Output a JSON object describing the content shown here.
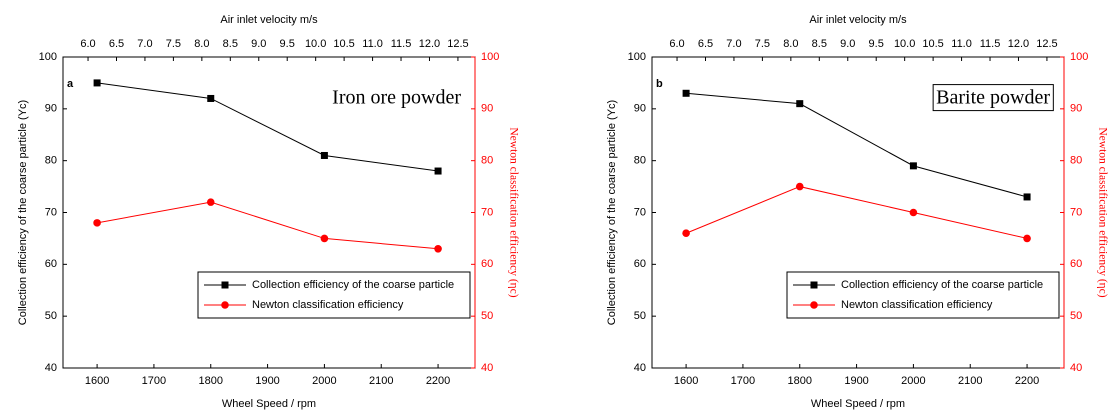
{
  "chart_data": [
    {
      "type": "line",
      "panel_label": "a",
      "annotation": "Iron ore powder",
      "annotation_boxed": false,
      "xlabel": "Wheel Speed / rpm",
      "x2label": "Air inlet velocity  m/s",
      "ylabel": "Collection efficiency of the coarse particle (Yc)",
      "y2label": "Newton classification efficiency (ηc)",
      "x": [
        1600,
        1800,
        2000,
        2200
      ],
      "xlim": [
        1540,
        2265
      ],
      "xticks": [
        1600,
        1700,
        1800,
        1900,
        2000,
        2100,
        2200
      ],
      "x2lim": [
        5.56,
        12.8
      ],
      "x2ticks": [
        {
          "value": 6,
          "label": "6.0"
        },
        6.5,
        {
          "value": 7,
          "label": "7.0"
        },
        7.5,
        {
          "value": 8,
          "label": "8.0"
        },
        8.5,
        {
          "value": 9,
          "label": "9.0"
        },
        9.5,
        {
          "value": 10,
          "label": "10.0"
        },
        10.5,
        {
          "value": 11,
          "label": "11.0"
        },
        11.5,
        {
          "value": 12,
          "label": "12.0"
        },
        12.5
      ],
      "ylim": [
        40,
        100
      ],
      "yticks": [
        40,
        50,
        60,
        70,
        80,
        90,
        100
      ],
      "y2lim": [
        40,
        100
      ],
      "y2ticks": [
        40,
        50,
        60,
        70,
        80,
        90,
        100
      ],
      "y2color": "#ff0000",
      "series": [
        {
          "name": "Collection efficiency of the coarse particle",
          "color": "#000000",
          "marker": "square",
          "values": [
            95,
            92,
            81,
            78
          ]
        },
        {
          "name": "Newton classification efficiency",
          "color": "#ff0000",
          "marker": "circle",
          "axis": "y2",
          "values": [
            68,
            72,
            65,
            63
          ]
        }
      ]
    },
    {
      "type": "line",
      "panel_label": "b",
      "annotation": "Barite powder",
      "annotation_boxed": true,
      "xlabel": "Wheel Speed / rpm",
      "x2label": "Air inlet velocity  m/s",
      "ylabel": "Collection efficiency of the coarse particle (Yc)",
      "y2label": "Newton classification efficiency (ηc)",
      "x": [
        1600,
        1800,
        2000,
        2200
      ],
      "xlim": [
        1540,
        2265
      ],
      "xticks": [
        1600,
        1700,
        1800,
        1900,
        2000,
        2100,
        2200
      ],
      "x2lim": [
        5.56,
        12.8
      ],
      "x2ticks": [
        {
          "value": 6,
          "label": "6.0"
        },
        6.5,
        {
          "value": 7,
          "label": "7.0"
        },
        7.5,
        {
          "value": 8,
          "label": "8.0"
        },
        8.5,
        {
          "value": 9,
          "label": "9.0"
        },
        9.5,
        {
          "value": 10,
          "label": "10.0"
        },
        10.5,
        {
          "value": 11,
          "label": "11.0"
        },
        11.5,
        {
          "value": 12,
          "label": "12.0"
        },
        12.5
      ],
      "ylim": [
        40,
        100
      ],
      "yticks": [
        40,
        50,
        60,
        70,
        80,
        90,
        100
      ],
      "y2lim": [
        40,
        100
      ],
      "y2ticks": [
        40,
        50,
        60,
        70,
        80,
        90,
        100
      ],
      "y2color": "#ff0000",
      "series": [
        {
          "name": "Collection efficiency of the coarse particle",
          "color": "#000000",
          "marker": "square",
          "values": [
            93,
            91,
            79,
            73
          ]
        },
        {
          "name": "Newton classification efficiency",
          "color": "#ff0000",
          "marker": "circle",
          "axis": "y2",
          "values": [
            66,
            75,
            70,
            65
          ]
        }
      ]
    }
  ]
}
